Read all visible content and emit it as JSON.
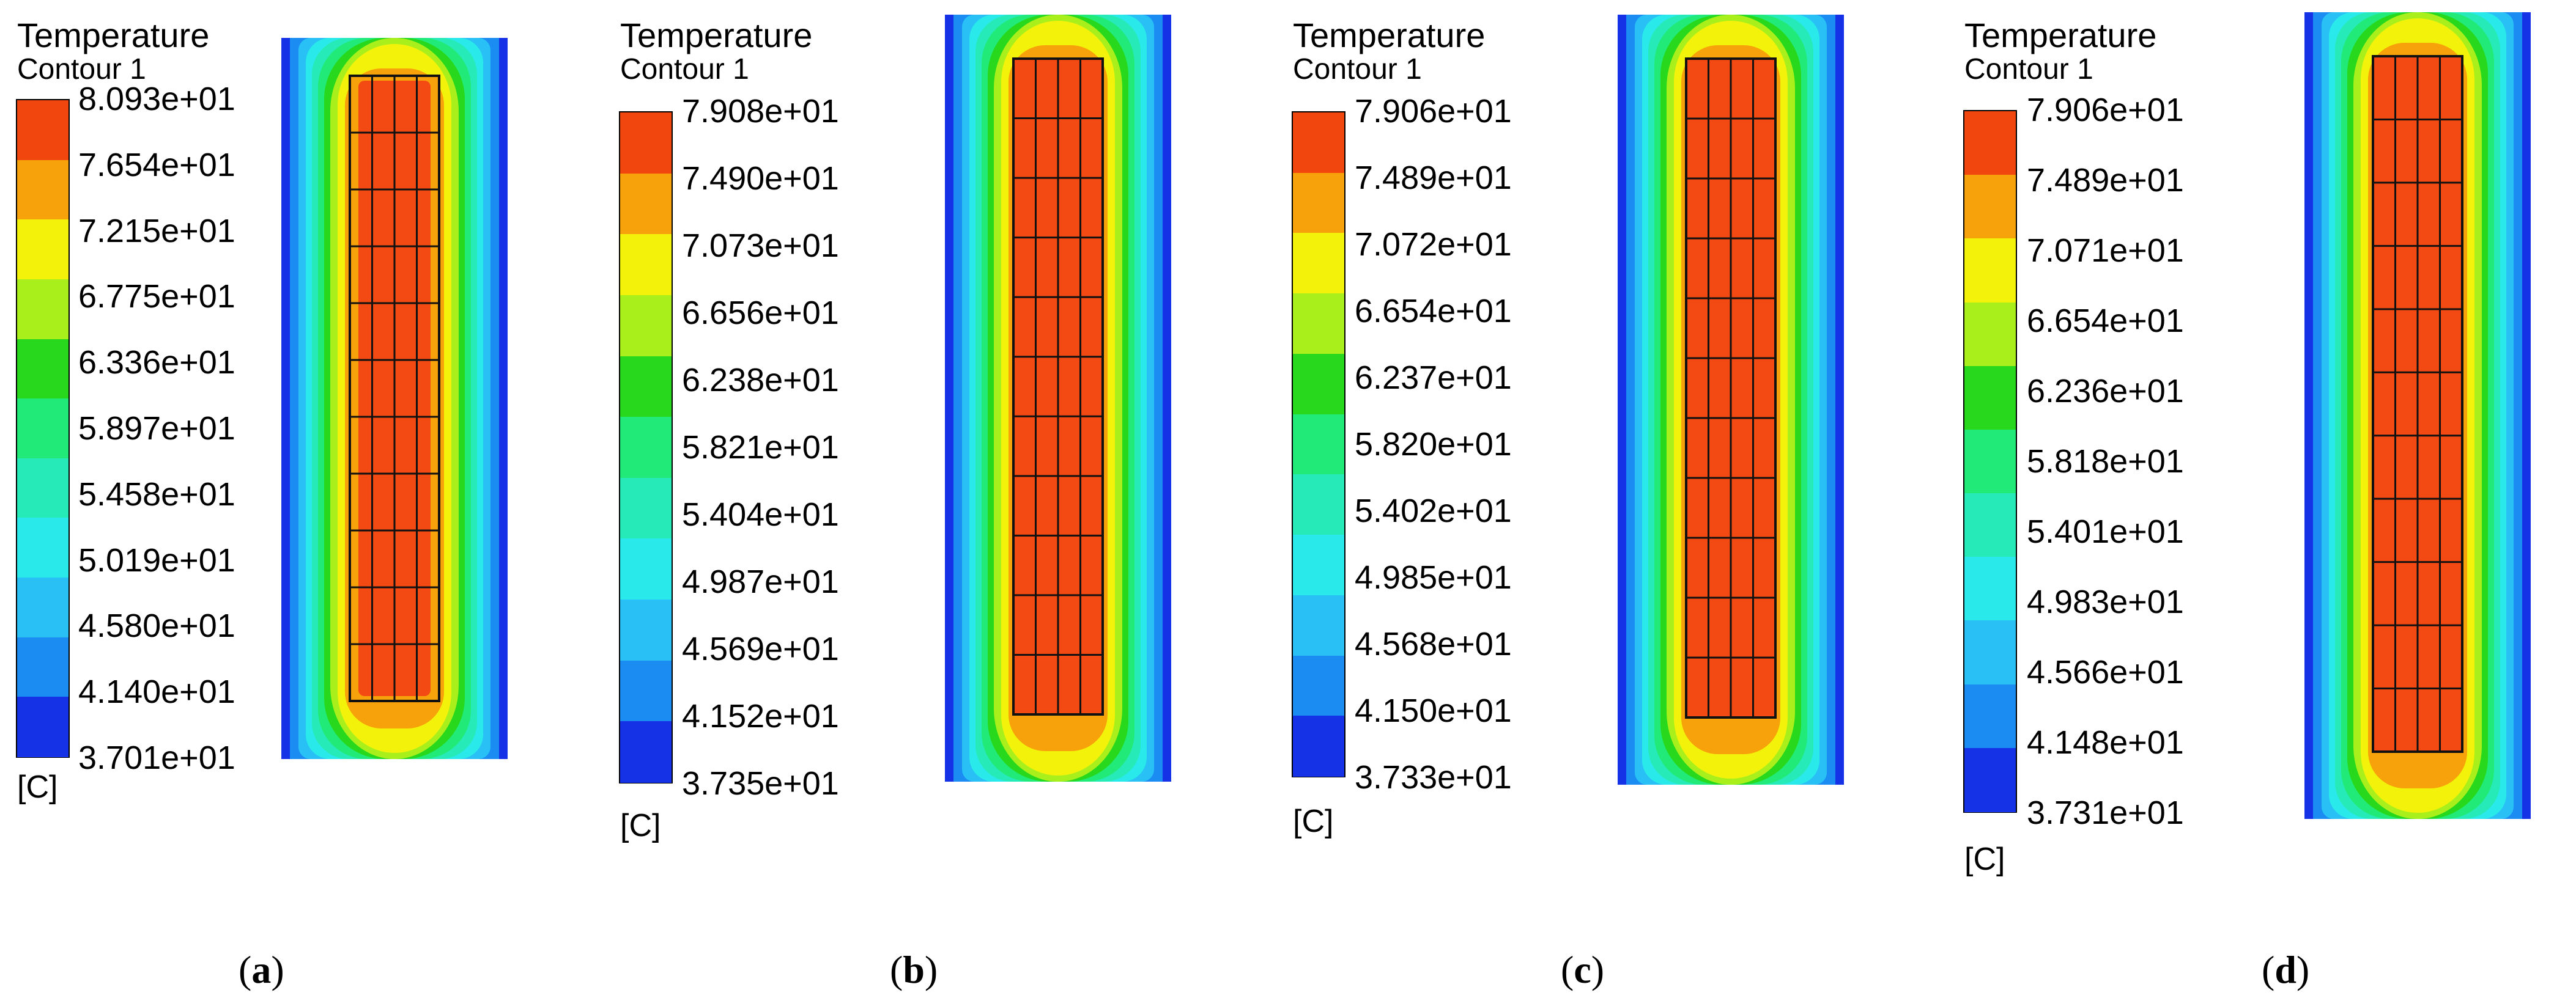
{
  "panels": [
    {
      "id": "a",
      "title": "Temperature",
      "subtitle": "Contour 1",
      "unit": "[C]",
      "caption_open": "(",
      "caption_letter": "a",
      "caption_close": ")",
      "ticks": [
        "8.093e+01",
        "7.654e+01",
        "7.215e+01",
        "6.775e+01",
        "6.336e+01",
        "5.897e+01",
        "5.458e+01",
        "5.019e+01",
        "4.580e+01",
        "4.140e+01",
        "3.701e+01"
      ]
    },
    {
      "id": "b",
      "title": "Temperature",
      "subtitle": "Contour 1",
      "unit": "[C]",
      "caption_open": "(",
      "caption_letter": "b",
      "caption_close": ")",
      "ticks": [
        "7.908e+01",
        "7.490e+01",
        "7.073e+01",
        "6.656e+01",
        "6.238e+01",
        "5.821e+01",
        "5.404e+01",
        "4.987e+01",
        "4.569e+01",
        "4.152e+01",
        "3.735e+01"
      ]
    },
    {
      "id": "c",
      "title": "Temperature",
      "subtitle": "Contour 1",
      "unit": "[C]",
      "caption_open": "(",
      "caption_letter": "c",
      "caption_close": ")",
      "ticks": [
        "7.906e+01",
        "7.489e+01",
        "7.072e+01",
        "6.654e+01",
        "6.237e+01",
        "5.820e+01",
        "5.402e+01",
        "4.985e+01",
        "4.568e+01",
        "4.150e+01",
        "3.733e+01"
      ]
    },
    {
      "id": "d",
      "title": "Temperature",
      "subtitle": "Contour 1",
      "unit": "[C]",
      "caption_open": "(",
      "caption_letter": "d",
      "caption_close": ")",
      "ticks": [
        "7.906e+01",
        "7.489e+01",
        "7.071e+01",
        "6.654e+01",
        "6.236e+01",
        "5.818e+01",
        "5.401e+01",
        "4.983e+01",
        "4.566e+01",
        "4.148e+01",
        "3.731e+01"
      ]
    }
  ],
  "colors": {
    "bands_top_to_bottom": [
      "#f2460f",
      "#f7a10b",
      "#f2f20a",
      "#a8ef1c",
      "#27d81c",
      "#22ea78",
      "#26eab8",
      "#2ae9ea",
      "#29c0f5",
      "#1a8cf2",
      "#1632e6"
    ],
    "cell_fill": "#f24a12",
    "cell_fill_a": "#f7a10b",
    "grid_line": "#111111"
  }
}
